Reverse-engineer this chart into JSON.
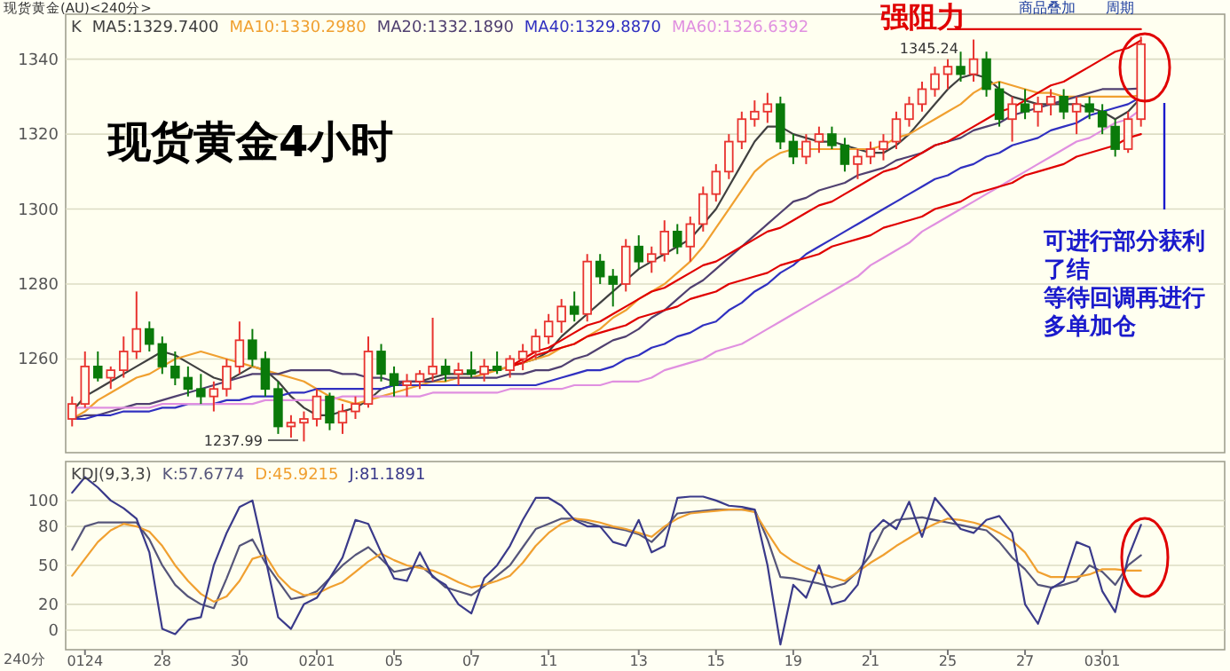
{
  "chart_data": [
    {
      "type": "candlestick",
      "title": "现货黄金4小时",
      "subtitle": "现货黄金(AU)<240分>",
      "legend_title": "K",
      "legend": "top left",
      "grid": "y",
      "tick_labels": "y",
      "ylim": [
        1235,
        1352
      ],
      "yticks": [
        1260,
        1280,
        1300,
        1320,
        1340
      ],
      "categories": [
        null,
        "0124",
        null,
        null,
        null,
        null,
        null,
        "28",
        null,
        null,
        null,
        null,
        null,
        "30",
        null,
        null,
        null,
        null,
        null,
        "0201",
        null,
        null,
        null,
        null,
        null,
        "05",
        null,
        null,
        null,
        null,
        null,
        "07",
        null,
        null,
        null,
        null,
        null,
        "11",
        null,
        null,
        null,
        null,
        null,
        null,
        "13",
        null,
        null,
        null,
        null,
        null,
        "15",
        null,
        null,
        null,
        null,
        null,
        "19",
        null,
        null,
        null,
        null,
        null,
        "21",
        null,
        null,
        null,
        null,
        null,
        "25",
        null,
        null,
        null,
        null,
        null,
        "27",
        null,
        null,
        null,
        null,
        null,
        "0301",
        null,
        null,
        null
      ],
      "ohlc": [
        [
          1244,
          1250,
          1242,
          1248
        ],
        [
          1248,
          1262,
          1247,
          1258
        ],
        [
          1258,
          1262,
          1254,
          1255
        ],
        [
          1255,
          1258,
          1252,
          1257
        ],
        [
          1257,
          1266,
          1255,
          1262
        ],
        [
          1262,
          1278,
          1260,
          1268
        ],
        [
          1268,
          1270,
          1262,
          1264
        ],
        [
          1264,
          1266,
          1256,
          1258
        ],
        [
          1258,
          1262,
          1253,
          1255
        ],
        [
          1255,
          1258,
          1250,
          1252
        ],
        [
          1252,
          1256,
          1248,
          1250
        ],
        [
          1250,
          1254,
          1246,
          1252
        ],
        [
          1252,
          1260,
          1250,
          1258
        ],
        [
          1258,
          1270,
          1256,
          1265
        ],
        [
          1265,
          1268,
          1258,
          1260
        ],
        [
          1260,
          1262,
          1250,
          1252
        ],
        [
          1252,
          1254,
          1240,
          1242
        ],
        [
          1242,
          1245,
          1239,
          1243
        ],
        [
          1243,
          1246,
          1237.99,
          1244
        ],
        [
          1244,
          1252,
          1242,
          1250
        ],
        [
          1250,
          1251,
          1241,
          1243
        ],
        [
          1243,
          1248,
          1240,
          1246
        ],
        [
          1246,
          1250,
          1244,
          1248
        ],
        [
          1248,
          1266,
          1247,
          1262
        ],
        [
          1262,
          1264,
          1254,
          1256
        ],
        [
          1256,
          1258,
          1250,
          1253
        ],
        [
          1253,
          1256,
          1250,
          1254
        ],
        [
          1254,
          1257,
          1252,
          1256
        ],
        [
          1256,
          1271,
          1254,
          1258
        ],
        [
          1258,
          1260,
          1254,
          1256
        ],
        [
          1256,
          1259,
          1253,
          1257
        ],
        [
          1257,
          1262,
          1255,
          1256
        ],
        [
          1256,
          1260,
          1254,
          1258
        ],
        [
          1258,
          1262,
          1256,
          1257
        ],
        [
          1257,
          1261,
          1255,
          1260
        ],
        [
          1260,
          1264,
          1257,
          1262
        ],
        [
          1262,
          1268,
          1260,
          1266
        ],
        [
          1266,
          1272,
          1264,
          1270
        ],
        [
          1270,
          1276,
          1267,
          1274
        ],
        [
          1274,
          1278,
          1270,
          1272
        ],
        [
          1272,
          1288,
          1270,
          1286
        ],
        [
          1286,
          1288,
          1280,
          1282
        ],
        [
          1282,
          1284,
          1274,
          1280
        ],
        [
          1280,
          1292,
          1278,
          1290
        ],
        [
          1290,
          1293,
          1284,
          1286
        ],
        [
          1286,
          1290,
          1283,
          1288
        ],
        [
          1288,
          1297,
          1286,
          1294
        ],
        [
          1294,
          1296,
          1288,
          1290
        ],
        [
          1290,
          1298,
          1286,
          1296
        ],
        [
          1296,
          1306,
          1294,
          1304
        ],
        [
          1304,
          1312,
          1302,
          1310
        ],
        [
          1310,
          1320,
          1308,
          1318
        ],
        [
          1318,
          1326,
          1316,
          1324
        ],
        [
          1324,
          1329,
          1322,
          1326
        ],
        [
          1326,
          1331,
          1323,
          1328
        ],
        [
          1328,
          1330,
          1316,
          1318
        ],
        [
          1318,
          1320,
          1312,
          1314
        ],
        [
          1314,
          1320,
          1312,
          1318
        ],
        [
          1318,
          1322,
          1315,
          1320
        ],
        [
          1320,
          1322,
          1316,
          1317
        ],
        [
          1317,
          1319,
          1310,
          1312
        ],
        [
          1312,
          1316,
          1308,
          1314
        ],
        [
          1314,
          1318,
          1312,
          1316
        ],
        [
          1316,
          1320,
          1313,
          1318
        ],
        [
          1318,
          1326,
          1316,
          1324
        ],
        [
          1324,
          1330,
          1322,
          1328
        ],
        [
          1328,
          1334,
          1326,
          1332
        ],
        [
          1332,
          1338,
          1330,
          1336
        ],
        [
          1336,
          1340,
          1332,
          1338
        ],
        [
          1338,
          1342,
          1334,
          1336
        ],
        [
          1336,
          1345.24,
          1334,
          1340
        ],
        [
          1340,
          1342,
          1330,
          1332
        ],
        [
          1332,
          1334,
          1322,
          1324
        ],
        [
          1324,
          1330,
          1318,
          1328
        ],
        [
          1328,
          1332,
          1324,
          1326
        ],
        [
          1326,
          1330,
          1322,
          1328
        ],
        [
          1328,
          1332,
          1325,
          1330
        ],
        [
          1330,
          1332,
          1324,
          1326
        ],
        [
          1326,
          1330,
          1320,
          1328
        ],
        [
          1328,
          1330,
          1324,
          1326
        ],
        [
          1326,
          1328,
          1320,
          1322
        ],
        [
          1322,
          1324,
          1314,
          1316
        ],
        [
          1316,
          1326,
          1315,
          1324
        ],
        [
          1324,
          1346,
          1322,
          1344
        ]
      ],
      "series": [
        {
          "type": "line",
          "name": "MA5:1329.7400",
          "color": "#404040",
          "values": [
            1246,
            1250,
            1252,
            1254,
            1256,
            1258,
            1260,
            1262,
            1261,
            1259,
            1257,
            1255,
            1254,
            1256,
            1258,
            1257,
            1254,
            1250,
            1247,
            1245,
            1245,
            1246,
            1247,
            1249,
            1252,
            1253,
            1254,
            1254,
            1255,
            1256,
            1256,
            1256,
            1257,
            1257,
            1258,
            1259,
            1260,
            1262,
            1266,
            1269,
            1272,
            1275,
            1278,
            1281,
            1284,
            1286,
            1288,
            1290,
            1292,
            1296,
            1300,
            1306,
            1312,
            1318,
            1322,
            1322,
            1320,
            1319,
            1318,
            1318,
            1317,
            1316,
            1315,
            1315,
            1317,
            1320,
            1324,
            1328,
            1332,
            1335,
            1336,
            1335,
            1332,
            1330,
            1329,
            1328,
            1328,
            1328,
            1328,
            1327,
            1326,
            1324,
            1326,
            1329.7
          ]
        },
        {
          "type": "line",
          "name": "MA10:1330.2980",
          "color": "#f0a030",
          "values": [
            1244,
            1246,
            1249,
            1251,
            1253,
            1255,
            1256,
            1258,
            1260,
            1261,
            1262,
            1261,
            1260,
            1259,
            1258,
            1257,
            1256,
            1255,
            1254,
            1252,
            1250,
            1249,
            1248,
            1249,
            1250,
            1251,
            1252,
            1253,
            1254,
            1254,
            1255,
            1255,
            1256,
            1257,
            1258,
            1259,
            1260,
            1261,
            1263,
            1264,
            1266,
            1268,
            1271,
            1273,
            1276,
            1278,
            1280,
            1283,
            1286,
            1290,
            1295,
            1300,
            1305,
            1310,
            1313,
            1315,
            1316,
            1316,
            1316,
            1316,
            1316,
            1316,
            1316,
            1317,
            1319,
            1320,
            1322,
            1324,
            1326,
            1328,
            1331,
            1333,
            1334,
            1333,
            1332,
            1331,
            1331,
            1330,
            1330,
            1330,
            1330,
            1330,
            1330,
            1330.3
          ]
        },
        {
          "type": "line",
          "name": "MA20:1332.1890",
          "color": "#504070",
          "values": [
            1244,
            1245,
            1245,
            1246,
            1247,
            1248,
            1248,
            1249,
            1250,
            1251,
            1252,
            1253,
            1254,
            1255,
            1256,
            1256,
            1256,
            1257,
            1257,
            1257,
            1257,
            1256,
            1256,
            1255,
            1255,
            1254,
            1254,
            1254,
            1254,
            1255,
            1255,
            1255,
            1255,
            1255,
            1256,
            1256,
            1257,
            1257,
            1258,
            1260,
            1261,
            1263,
            1265,
            1266,
            1268,
            1271,
            1273,
            1276,
            1279,
            1281,
            1284,
            1287,
            1290,
            1293,
            1296,
            1299,
            1302,
            1303,
            1305,
            1306,
            1307,
            1309,
            1310,
            1311,
            1313,
            1314,
            1315,
            1317,
            1318,
            1319,
            1321,
            1322,
            1323,
            1325,
            1326,
            1327,
            1328,
            1329,
            1330,
            1331,
            1332,
            1332,
            1332,
            1332.2
          ]
        },
        {
          "type": "line",
          "name": "MA40:1329.8870",
          "color": "#3030c0",
          "values": [
            1244,
            1244,
            1245,
            1245,
            1246,
            1246,
            1246,
            1247,
            1247,
            1248,
            1248,
            1248,
            1249,
            1249,
            1250,
            1250,
            1250,
            1251,
            1251,
            1252,
            1252,
            1252,
            1252,
            1252,
            1252,
            1253,
            1253,
            1253,
            1253,
            1253,
            1253,
            1253,
            1253,
            1253,
            1253,
            1253,
            1253,
            1254,
            1255,
            1256,
            1257,
            1257,
            1258,
            1260,
            1261,
            1263,
            1264,
            1266,
            1267,
            1269,
            1270,
            1273,
            1275,
            1278,
            1280,
            1283,
            1285,
            1288,
            1290,
            1292,
            1294,
            1296,
            1298,
            1300,
            1302,
            1304,
            1306,
            1308,
            1309,
            1311,
            1312,
            1314,
            1315,
            1317,
            1318,
            1319,
            1321,
            1322,
            1323,
            1325,
            1326,
            1327,
            1328,
            1329.9
          ]
        },
        {
          "type": "line",
          "name": "MA60:1326.6392",
          "color": "#e090e0",
          "values": [
            1247,
            1247,
            1247,
            1247,
            1247,
            1247,
            1247,
            1248,
            1248,
            1248,
            1248,
            1248,
            1248,
            1248,
            1248,
            1249,
            1249,
            1249,
            1249,
            1249,
            1249,
            1250,
            1250,
            1250,
            1250,
            1250,
            1250,
            1250,
            1251,
            1251,
            1251,
            1251,
            1251,
            1251,
            1252,
            1252,
            1252,
            1252,
            1252,
            1253,
            1253,
            1253,
            1254,
            1254,
            1254,
            1255,
            1257,
            1258,
            1259,
            1260,
            1262,
            1263,
            1264,
            1266,
            1268,
            1270,
            1272,
            1274,
            1276,
            1278,
            1280,
            1282,
            1285,
            1287,
            1289,
            1291,
            1294,
            1296,
            1298,
            1300,
            1302,
            1304,
            1306,
            1308,
            1310,
            1312,
            1314,
            1316,
            1318,
            1319,
            1321,
            1323,
            1324,
            1326.6
          ]
        },
        {
          "type": "line",
          "color": "#e00000",
          "values": [
            null,
            null,
            null,
            null,
            null,
            null,
            null,
            null,
            null,
            null,
            null,
            null,
            null,
            null,
            null,
            null,
            null,
            null,
            null,
            null,
            null,
            null,
            null,
            null,
            null,
            null,
            null,
            null,
            null,
            null,
            null,
            null,
            null,
            null,
            1258,
            1260,
            1262,
            1263,
            1265,
            1267,
            1269,
            1270,
            1272,
            1274,
            1276,
            1278,
            1279,
            1281,
            1283,
            1285,
            1286,
            1288,
            1290,
            1292,
            1294,
            1295,
            1297,
            1299,
            1301,
            1302,
            1304,
            1306,
            1308,
            1310,
            1311,
            1313,
            1315,
            1317,
            1318,
            1320,
            1322,
            1324,
            1326,
            1327,
            1329,
            1331,
            1333,
            1334,
            1336,
            1338,
            1340,
            1342,
            1343,
            1345
          ]
        },
        {
          "type": "line",
          "color": "#e00000",
          "values": [
            null,
            null,
            null,
            null,
            null,
            null,
            null,
            null,
            null,
            null,
            null,
            null,
            null,
            null,
            null,
            null,
            null,
            null,
            null,
            null,
            null,
            null,
            null,
            null,
            null,
            null,
            null,
            null,
            null,
            null,
            null,
            null,
            null,
            null,
            1258,
            1259,
            1261,
            1262,
            1263,
            1264,
            1266,
            1267,
            1268,
            1269,
            1271,
            1272,
            1273,
            1274,
            1276,
            1277,
            1278,
            1280,
            1281,
            1282,
            1283,
            1285,
            1286,
            1287,
            1288,
            1290,
            1291,
            1292,
            1293,
            1295,
            1296,
            1297,
            1298,
            1300,
            1301,
            1302,
            1304,
            1305,
            1306,
            1307,
            1309,
            1310,
            1311,
            1312,
            1314,
            1315,
            1316,
            1317,
            1319,
            1320
          ]
        },
        {
          "type": "line",
          "color": "#e00000",
          "values": [
            null,
            null,
            null,
            null,
            null,
            null,
            null,
            null,
            null,
            null,
            null,
            null,
            null,
            null,
            null,
            null,
            null,
            null,
            null,
            null,
            null,
            null,
            null,
            null,
            null,
            null,
            null,
            null,
            null,
            null,
            null,
            null,
            null,
            null,
            null,
            null,
            null,
            null,
            null,
            null,
            null,
            null,
            null,
            null,
            null,
            null,
            null,
            null,
            null,
            null,
            null,
            null,
            null,
            null,
            null,
            null,
            null,
            null,
            null,
            null,
            null,
            null,
            null,
            null,
            null,
            null,
            null,
            null,
            1348,
            1348,
            1348,
            1348,
            1348,
            1348,
            1348,
            1348,
            1348,
            1348,
            1348,
            1348,
            1348,
            1348,
            1348,
            1348
          ]
        }
      ],
      "annotations": [
        "强阻力",
        "可进行部分获利",
        "了结",
        "等待回调再进行",
        "多单加仓",
        "商品叠加",
        "周期",
        "1237.99",
        "1345.24"
      ]
    },
    {
      "type": "line",
      "legend_title": "KDJ(9,3,3)",
      "legend": "top left",
      "grid": "y",
      "ylim": [
        -15,
        130
      ],
      "yticks": [
        0,
        20,
        50,
        80,
        100
      ],
      "categories": [
        null,
        "0124",
        null,
        null,
        null,
        null,
        null,
        "28",
        null,
        null,
        null,
        null,
        null,
        "30",
        null,
        null,
        null,
        null,
        null,
        "0201",
        null,
        null,
        null,
        null,
        null,
        "05",
        null,
        null,
        null,
        null,
        null,
        "07",
        null,
        null,
        null,
        null,
        null,
        "11",
        null,
        null,
        null,
        null,
        null,
        null,
        "13",
        null,
        null,
        null,
        null,
        null,
        "15",
        null,
        null,
        null,
        null,
        null,
        "19",
        null,
        null,
        null,
        null,
        null,
        "21",
        null,
        null,
        null,
        null,
        null,
        "25",
        null,
        null,
        null,
        null,
        null,
        "27",
        null,
        null,
        null,
        null,
        null,
        "0301",
        null,
        null,
        null
      ],
      "series": [
        {
          "name": "K:57.6774",
          "color": "#55557a",
          "values": [
            62,
            80,
            83,
            83,
            83,
            83,
            70,
            50,
            35,
            26,
            20,
            17,
            40,
            65,
            70,
            52,
            38,
            24,
            26,
            30,
            40,
            50,
            58,
            64,
            55,
            45,
            47,
            50,
            42,
            33,
            30,
            27,
            34,
            42,
            50,
            64,
            78,
            82,
            86,
            86,
            83,
            80,
            79,
            77,
            74,
            68,
            78,
            90,
            91,
            92,
            93,
            93,
            93,
            93,
            70,
            41,
            40,
            38,
            36,
            33,
            36,
            45,
            58,
            78,
            85,
            86,
            87,
            85,
            83,
            81,
            79,
            77,
            68,
            56,
            47,
            35,
            33,
            35,
            38,
            50,
            45,
            35,
            50,
            57.68
          ]
        },
        {
          "name": "D:45.9215",
          "color": "#f0a030",
          "values": [
            42,
            55,
            68,
            77,
            82,
            80,
            76,
            65,
            50,
            38,
            28,
            22,
            26,
            38,
            55,
            58,
            42,
            32,
            27,
            28,
            33,
            37,
            45,
            53,
            59,
            54,
            50,
            48,
            46,
            42,
            37,
            33,
            35,
            38,
            42,
            52,
            65,
            75,
            82,
            86,
            85,
            83,
            80,
            78,
            75,
            72,
            80,
            86,
            90,
            91,
            92,
            93,
            93,
            91,
            75,
            60,
            53,
            48,
            44,
            41,
            38,
            45,
            52,
            58,
            65,
            71,
            77,
            82,
            86,
            85,
            83,
            80,
            75,
            69,
            60,
            45,
            41,
            41,
            41,
            43,
            47,
            47,
            46,
            45.92
          ]
        },
        {
          "name": "J:81.1891",
          "color": "#3a3a8a",
          "values": [
            106,
            118,
            110,
            100,
            94,
            86,
            60,
            1,
            -3,
            8,
            10,
            50,
            75,
            95,
            100,
            56,
            10,
            1,
            20,
            25,
            40,
            56,
            85,
            82,
            60,
            40,
            38,
            60,
            41,
            35,
            20,
            13,
            40,
            50,
            65,
            85,
            102,
            102,
            96,
            85,
            80,
            80,
            68,
            65,
            85,
            60,
            65,
            102,
            103,
            103,
            100,
            96,
            95,
            93,
            50,
            -11,
            35,
            25,
            50,
            20,
            23,
            35,
            75,
            85,
            78,
            99,
            72,
            102,
            90,
            78,
            75,
            85,
            88,
            75,
            20,
            5,
            32,
            38,
            68,
            64,
            30,
            14,
            56,
            81.19
          ]
        }
      ],
      "annotations": [
        "240分"
      ]
    }
  ]
}
